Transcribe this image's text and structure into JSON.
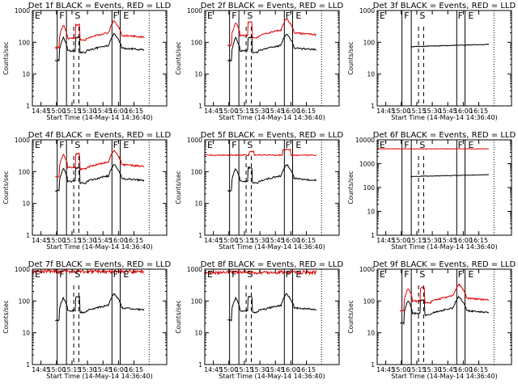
{
  "window": {
    "title": ""
  },
  "colors": {
    "events": "#000000",
    "lld": "#e00000",
    "background": "#ffffff"
  },
  "common": {
    "xlabel": "Start Time (14-May-14 14:36:40)",
    "ylabel": "Counts/sec",
    "x_ticks": [
      "14:45",
      "15:00",
      "15:15",
      "15:30",
      "15:45",
      "16:00",
      "16:15"
    ],
    "y_ticks": [
      "1",
      "10",
      "100",
      "1000"
    ]
  },
  "flag_labels": {
    "E": "E",
    "F": "F",
    "S": "S"
  },
  "chart_data": [
    {
      "type": "line",
      "title": "Det 1f BLACK = Events, RED = LLD",
      "xlabel": "Start Time (14-May-14 14:36:40)",
      "ylabel": "Counts/sec",
      "ylim": [
        1,
        1000
      ],
      "log_y": true,
      "series": [
        {
          "name": "Events",
          "color": "#000000",
          "shape": "std",
          "level": 60
        },
        {
          "name": "LLD",
          "color": "#e00000",
          "shape": "std",
          "level": 150
        }
      ]
    },
    {
      "type": "line",
      "title": "Det 2f BLACK = Events, RED = LLD",
      "xlabel": "Start Time (14-May-14 14:36:40)",
      "ylabel": "Counts/sec",
      "ylim": [
        1,
        1000
      ],
      "log_y": true,
      "series": [
        {
          "name": "Events",
          "color": "#000000",
          "shape": "std",
          "level": 60
        },
        {
          "name": "LLD",
          "color": "#e00000",
          "shape": "std",
          "level": 180
        }
      ]
    },
    {
      "type": "line",
      "title": "Det 3f BLACK = Events, RED = LLD",
      "xlabel": "Start Time (14-May-14 14:36:40)",
      "ylabel": "Counts/sec",
      "ylim": [
        1,
        1000
      ],
      "log_y": true,
      "series": [
        {
          "name": "Events",
          "color": "#000000",
          "shape": "flat",
          "level": 85
        }
      ]
    },
    {
      "type": "line",
      "title": "Det 4f BLACK = Events, RED = LLD",
      "xlabel": "Start Time (14-May-14 14:36:40)",
      "ylabel": "Counts/sec",
      "ylim": [
        1,
        1000
      ],
      "log_y": true,
      "series": [
        {
          "name": "Events",
          "color": "#000000",
          "shape": "std",
          "level": 55
        },
        {
          "name": "LLD",
          "color": "#e00000",
          "shape": "std",
          "level": 150
        }
      ]
    },
    {
      "type": "line",
      "title": "Det 5f BLACK = Events, RED = LLD",
      "xlabel": "Start Time (14-May-14 14:36:40)",
      "ylabel": "Counts/sec",
      "ylim": [
        1,
        1000
      ],
      "log_y": true,
      "series": [
        {
          "name": "Events",
          "color": "#000000",
          "shape": "std",
          "level": 55
        },
        {
          "name": "LLD",
          "color": "#e00000",
          "shape": "flatbump",
          "level": 330
        }
      ]
    },
    {
      "type": "line",
      "title": "Det 6f BLACK = Events, RED = LLD",
      "xlabel": "Start Time (14-May-14 14:36:40)",
      "ylabel": "Counts/sec",
      "ylim": [
        1,
        10000
      ],
      "log_y": true,
      "series": [
        {
          "name": "Events",
          "color": "#000000",
          "shape": "flat",
          "level": 340
        },
        {
          "name": "LLD",
          "color": "#e00000",
          "shape": "const",
          "level": 4200
        }
      ]
    },
    {
      "type": "line",
      "title": "Det 7f BLACK = Events, RED = LLD",
      "xlabel": "Start Time (14-May-14 14:36:40)",
      "ylabel": "Counts/sec",
      "ylim": [
        1,
        1000
      ],
      "log_y": true,
      "series": [
        {
          "name": "Events",
          "color": "#000000",
          "shape": "std",
          "level": 55
        },
        {
          "name": "LLD",
          "color": "#e00000",
          "shape": "noisyflat",
          "level": 850
        }
      ]
    },
    {
      "type": "line",
      "title": "Det 8f BLACK = Events, RED = LLD",
      "xlabel": "Start Time (14-May-14 14:36:40)",
      "ylabel": "Counts/sec",
      "ylim": [
        1,
        1000
      ],
      "log_y": true,
      "series": [
        {
          "name": "Events",
          "color": "#000000",
          "shape": "std",
          "level": 55
        },
        {
          "name": "LLD",
          "color": "#e00000",
          "shape": "noisyflat",
          "level": 800
        }
      ]
    },
    {
      "type": "line",
      "title": "Det 9f BLACK = Events, RED = LLD",
      "xlabel": "Start Time (14-May-14 14:36:40)",
      "ylabel": "Counts/sec",
      "ylim": [
        1,
        1000
      ],
      "log_y": true,
      "series": [
        {
          "name": "Events",
          "color": "#000000",
          "shape": "std",
          "level": 45
        },
        {
          "name": "LLD",
          "color": "#e00000",
          "shape": "std",
          "level": 110
        }
      ]
    }
  ]
}
